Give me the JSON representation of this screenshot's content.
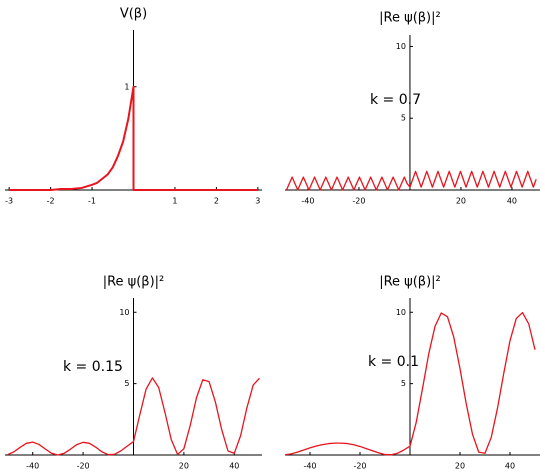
{
  "chart_data": [
    {
      "type": "line",
      "title": "V(β)",
      "x": [
        -3,
        -2.5,
        -2,
        -1.75,
        -1.5,
        -1.25,
        -1,
        -0.875,
        -0.75,
        -0.625,
        -0.5,
        -0.375,
        -0.25,
        -0.125,
        0,
        0,
        3
      ],
      "series": [
        {
          "color": "#e8141e",
          "values": [
            0,
            0,
            0,
            0.01,
            0.01,
            0.02,
            0.05,
            0.07,
            0.11,
            0.15,
            0.22,
            0.33,
            0.47,
            0.69,
            1,
            0,
            0
          ]
        }
      ],
      "xlim": [
        -3.1,
        3.1
      ],
      "ylim": [
        0,
        1.55
      ],
      "xticks": [
        -3,
        -2,
        -1,
        1,
        2,
        3
      ],
      "yticks": [
        1
      ]
    },
    {
      "type": "line",
      "title": "|Re ψ(β)|²",
      "annotation": "k = 0.7",
      "x": [
        -48.4,
        -47.3,
        -46.2,
        -45.1,
        -44,
        -42.9,
        -41.8,
        -40.7,
        -39.6,
        -38.5,
        -37.4,
        -36.3,
        -35.2,
        -34.1,
        -33,
        -31.9,
        -30.8,
        -29.7,
        -28.6,
        -27.5,
        -26.4,
        -25.3,
        -24.2,
        -23.1,
        -22,
        -20.9,
        -19.8,
        -18.7,
        -17.6,
        -16.5,
        -15.4,
        -14.3,
        -13.2,
        -12.1,
        -11,
        -9.9,
        -8.8,
        -7.7,
        -6.6,
        -5.5,
        -4.4,
        -3.3,
        -2.2,
        -1.1,
        0,
        1.1,
        2.2,
        3.3,
        4.4,
        5.5,
        6.6,
        7.7,
        8.8,
        9.9,
        11,
        12.1,
        13.2,
        14.3,
        15.4,
        16.5,
        17.6,
        18.7,
        19.8,
        20.9,
        22,
        23.1,
        24.2,
        25.3,
        26.4,
        27.5,
        28.6,
        29.7,
        30.8,
        31.9,
        33,
        34.1,
        35.2,
        36.3,
        37.4,
        38.5,
        39.6,
        40.7,
        41.8,
        42.9,
        44,
        45.1,
        46.2,
        47.3,
        48.4,
        49.5
      ],
      "series": [
        {
          "color": "#e8141e",
          "values": [
            0,
            0.45,
            0.9,
            0.45,
            0,
            0.45,
            0.9,
            0.45,
            0,
            0.45,
            0.9,
            0.45,
            0,
            0.45,
            0.9,
            0.45,
            0,
            0.45,
            0.9,
            0.45,
            0,
            0.45,
            0.9,
            0.45,
            0,
            0.45,
            0.9,
            0.45,
            0,
            0.45,
            0.9,
            0.45,
            0,
            0.45,
            0.9,
            0.45,
            0,
            0.45,
            0.9,
            0.45,
            0,
            0.45,
            0.9,
            0.45,
            0.2,
            0.75,
            1.3,
            0.75,
            0.2,
            0.75,
            1.3,
            0.75,
            0.2,
            0.75,
            1.3,
            0.75,
            0.2,
            0.75,
            1.3,
            0.75,
            0.2,
            0.75,
            1.3,
            0.75,
            0.2,
            0.75,
            1.3,
            0.75,
            0.2,
            0.75,
            1.3,
            0.75,
            0.2,
            0.75,
            1.3,
            0.75,
            0.2,
            0.75,
            1.3,
            0.75,
            0.2,
            0.75,
            1.3,
            0.75,
            0.2,
            0.75,
            1.3,
            0.75,
            0.2,
            0.75
          ]
        }
      ],
      "xlim": [
        -49,
        51
      ],
      "ylim": [
        0,
        10.8
      ],
      "xticks": [
        -40,
        -20,
        20,
        40
      ],
      "yticks": [
        5,
        10
      ]
    },
    {
      "type": "line",
      "title": "|Re ψ(β)|²",
      "annotation": "k = 0.15",
      "x": [
        -50,
        -47.5,
        -45,
        -42.5,
        -40,
        -37.5,
        -35,
        -32.5,
        -30,
        -27.5,
        -25,
        -22.5,
        -20,
        -17.5,
        -15,
        -12.5,
        -10,
        -7.5,
        -5,
        -2.5,
        0,
        2.5,
        5,
        7.5,
        10,
        12.5,
        15,
        17.5,
        20,
        22.5,
        25,
        27.5,
        30,
        32.5,
        35,
        37.5,
        40,
        42.5,
        45,
        47.5,
        50
      ],
      "series": [
        {
          "color": "#e8141e",
          "values": [
            0.02,
            0.22,
            0.54,
            0.82,
            0.9,
            0.74,
            0.42,
            0.12,
            0,
            0.12,
            0.41,
            0.73,
            0.89,
            0.82,
            0.55,
            0.22,
            0.02,
            0.05,
            0.29,
            0.62,
            0.94,
            2.81,
            4.62,
            5.4,
            4.73,
            2.97,
            1.07,
            0.04,
            0.44,
            2.06,
            4.01,
            5.27,
            5.14,
            3.71,
            1.78,
            0.28,
            0.12,
            1.35,
            3.3,
            4.9,
            5.38
          ]
        }
      ],
      "xlim": [
        -51,
        51
      ],
      "ylim": [
        0,
        11
      ],
      "xticks": [
        -40,
        -20,
        20,
        40
      ],
      "yticks": [
        5,
        10
      ]
    },
    {
      "type": "line",
      "title": "|Re ψ(β)|²",
      "annotation": "k = 0.1",
      "x": [
        -50,
        -47.5,
        -45,
        -42.5,
        -40,
        -37.5,
        -35,
        -32.5,
        -30,
        -27.5,
        -25,
        -22.5,
        -20,
        -17.5,
        -15,
        -12.5,
        -10,
        -7.5,
        -5,
        -2.5,
        0,
        2.5,
        5,
        7.5,
        10,
        12.5,
        15,
        17.5,
        20,
        22.5,
        25,
        27.5,
        30,
        32.5,
        35,
        37.5,
        40,
        42.5,
        45,
        47.5,
        50
      ],
      "series": [
        {
          "color": "#e8141e",
          "values": [
            0.02,
            0.08,
            0.2,
            0.35,
            0.5,
            0.63,
            0.73,
            0.8,
            0.83,
            0.83,
            0.8,
            0.72,
            0.6,
            0.45,
            0.3,
            0.15,
            0.03,
            0.02,
            0.12,
            0.35,
            0.62,
            2.3,
            4.65,
            7.09,
            9.01,
            9.95,
            9.68,
            8.26,
            6.05,
            3.58,
            1.45,
            0.2,
            0.12,
            1.24,
            3.28,
            5.72,
            8.01,
            9.56,
            9.98,
            9.18,
            7.38
          ]
        }
      ],
      "xlim": [
        -50,
        52
      ],
      "ylim": [
        0,
        11
      ],
      "xticks": [
        -40,
        -20,
        20,
        40
      ],
      "yticks": [
        5,
        10
      ]
    }
  ]
}
